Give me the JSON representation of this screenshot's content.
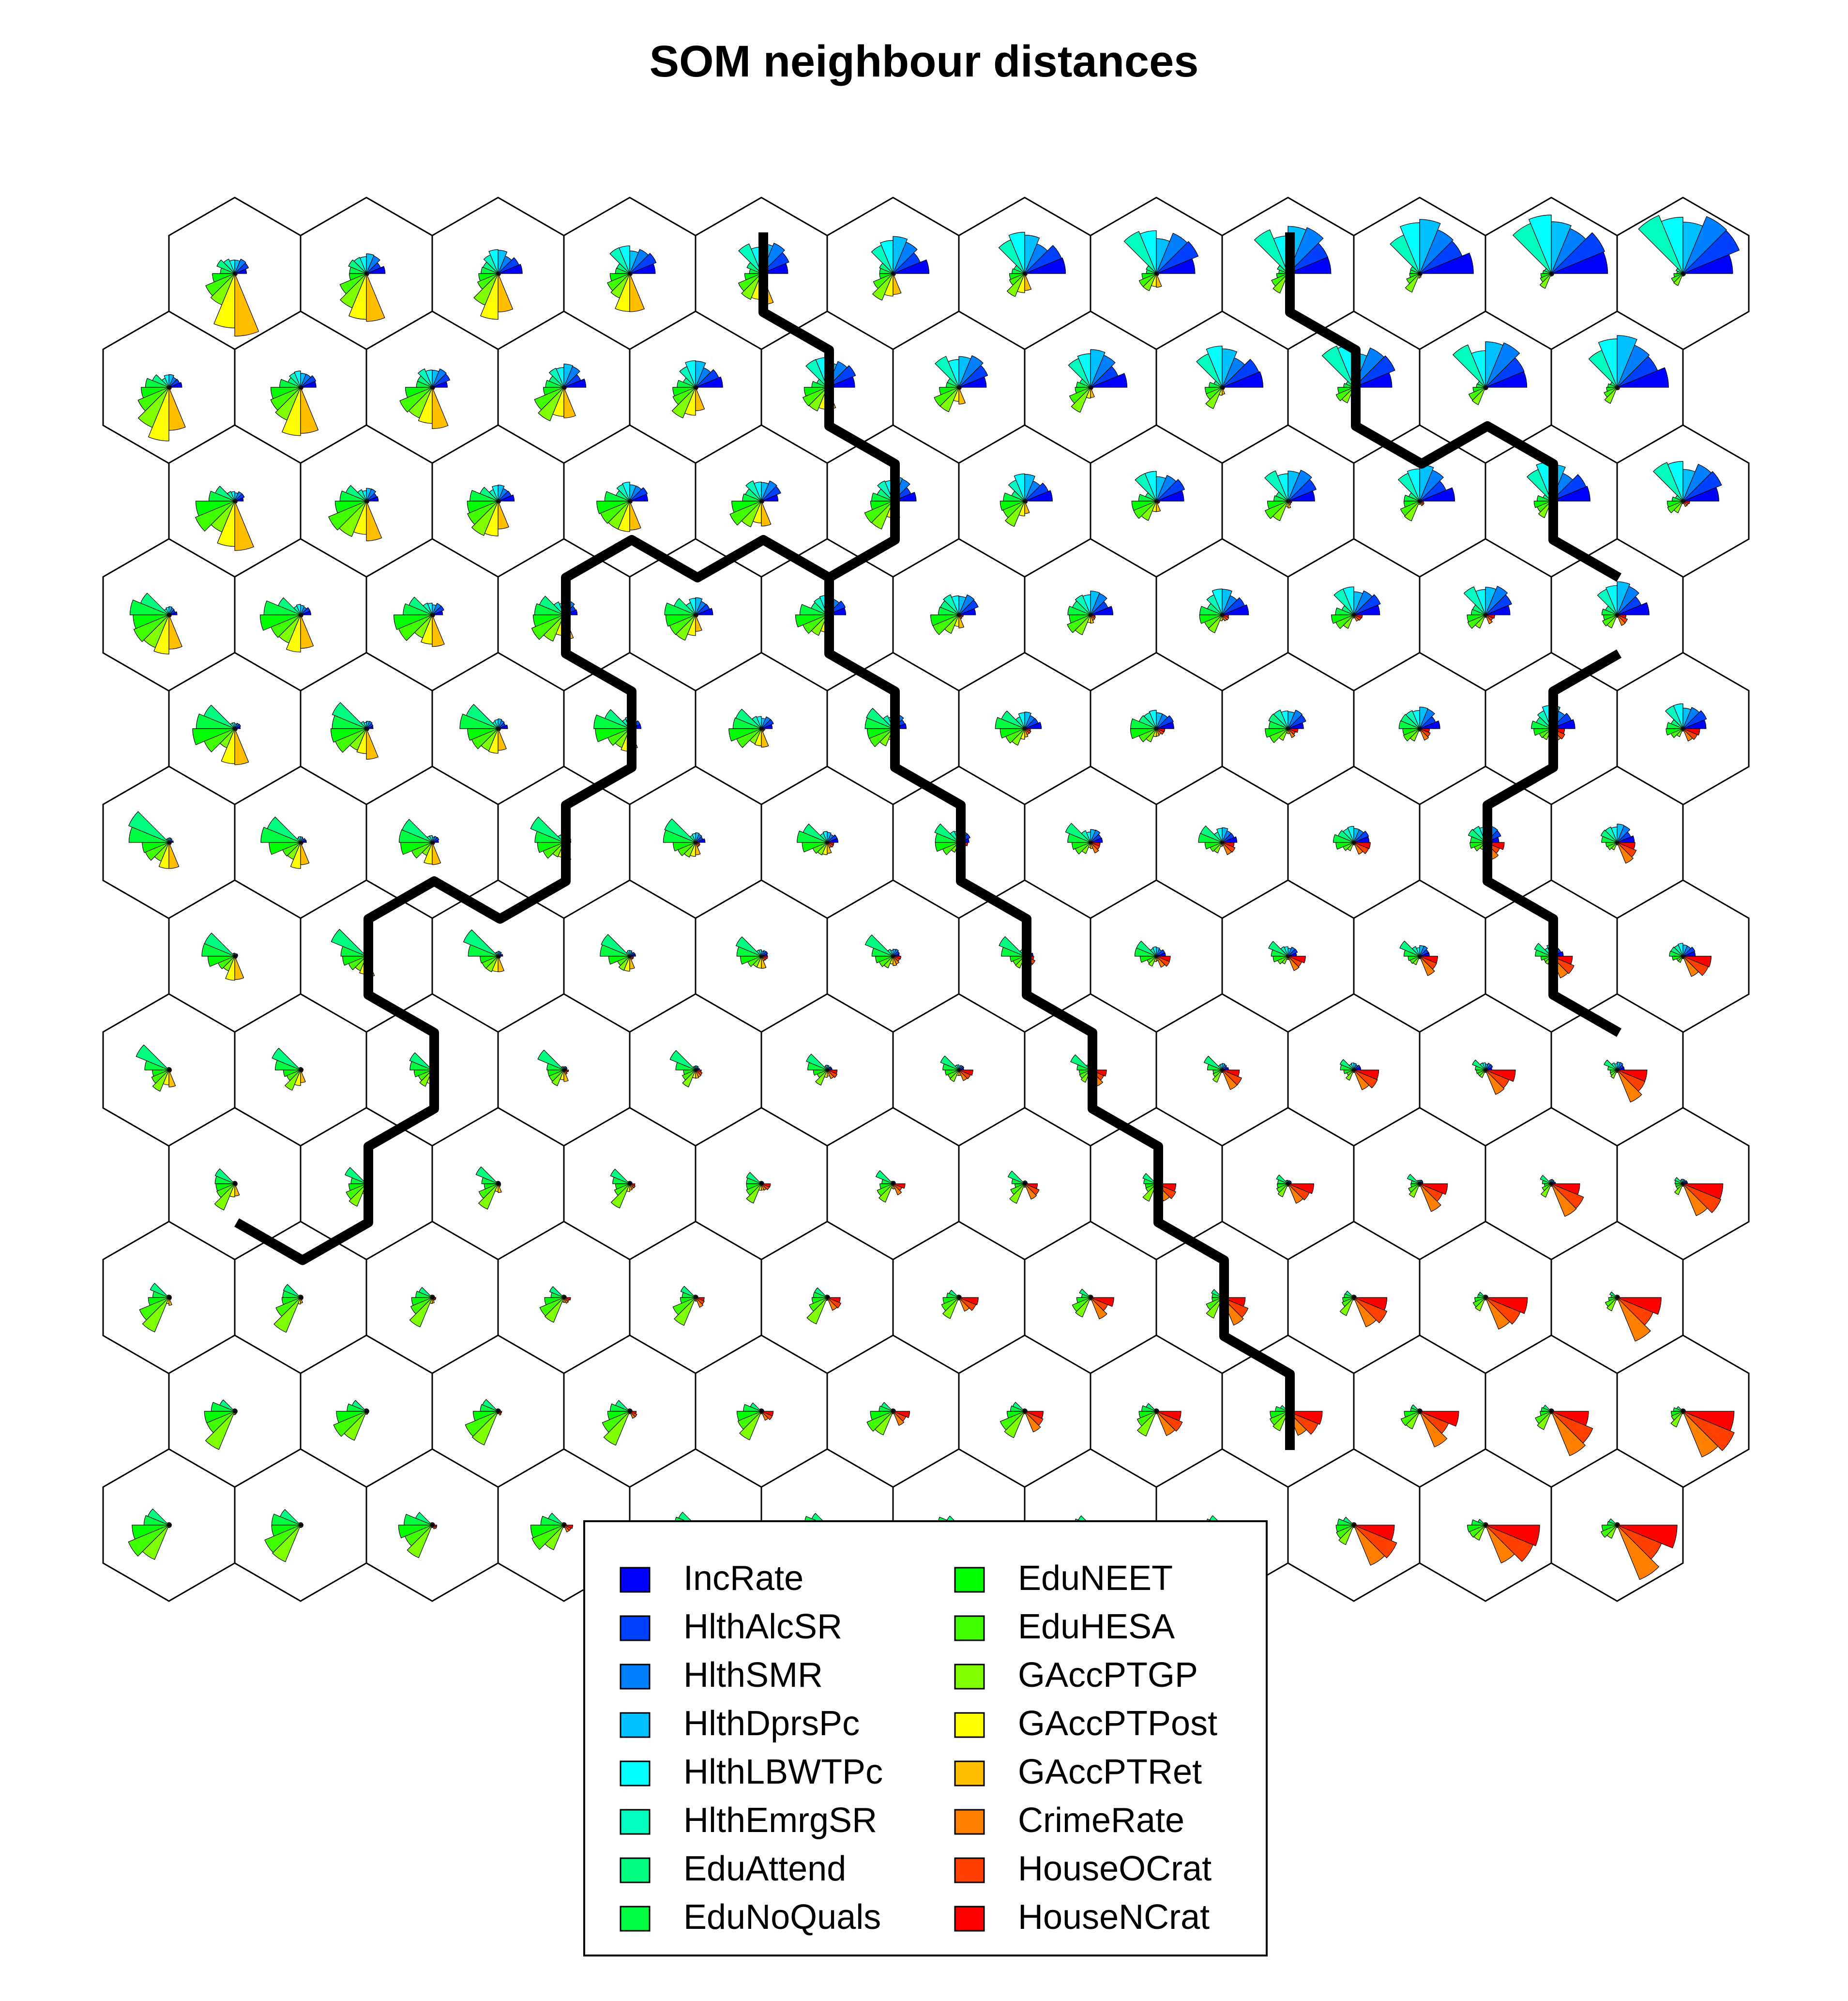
{
  "chart_data": {
    "type": "som-codes-fan",
    "title": "SOM neighbour distances",
    "grid": {
      "topology": "hexagonal",
      "xdim": 12,
      "ydim": 12
    },
    "variables": [
      {
        "name": "IncRate",
        "color": "#0000FF"
      },
      {
        "name": "HlthAlcSR",
        "color": "#0040FF"
      },
      {
        "name": "HlthSMR",
        "color": "#0080FF"
      },
      {
        "name": "HlthDprsPc",
        "color": "#00BFFF"
      },
      {
        "name": "HlthLBWTPc",
        "color": "#00FFFF"
      },
      {
        "name": "HlthEmrgSR",
        "color": "#00FFBF"
      },
      {
        "name": "EduAttend",
        "color": "#00FF80"
      },
      {
        "name": "EduNoQuals",
        "color": "#00FF40"
      },
      {
        "name": "EduNEET",
        "color": "#00FF00"
      },
      {
        "name": "EduHESA",
        "color": "#40FF00"
      },
      {
        "name": "GAccPTGP",
        "color": "#80FF00"
      },
      {
        "name": "GAccPTPost",
        "color": "#FFFF00"
      },
      {
        "name": "GAccPTRet",
        "color": "#FFBF00"
      },
      {
        "name": "CrimeRate",
        "color": "#FF8000"
      },
      {
        "name": "HouseOCrat",
        "color": "#FF4000"
      },
      {
        "name": "HouseNCrat",
        "color": "#FF0000"
      }
    ],
    "legend": {
      "position": "bottom",
      "columns": 2
    }
  }
}
